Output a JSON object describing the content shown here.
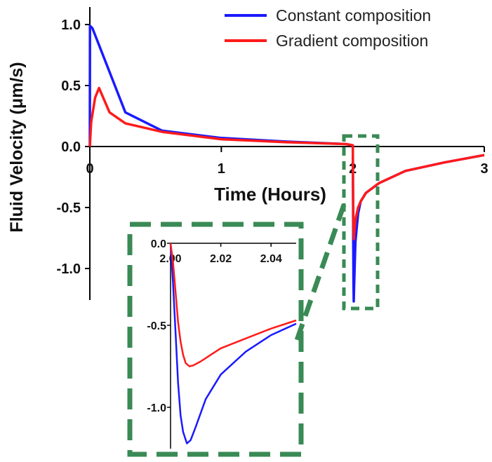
{
  "chart_data": {
    "type": "line",
    "xlabel": "Time (Hours)",
    "ylabel": "Fluid Velocity (μm/s)",
    "xlim": [
      0,
      3
    ],
    "ylim": [
      -1.25,
      1.15
    ],
    "x_ticks": [
      "0",
      "1",
      "2",
      "3"
    ],
    "y_ticks": [
      "1.0",
      "0.5",
      "0.0",
      "-0.5",
      "-1.0"
    ],
    "legend_position": "top-right",
    "grid": false,
    "series": [
      {
        "name": "Constant composition",
        "color": "#1a1aff",
        "x": [
          0,
          0.001,
          0.02,
          0.27,
          0.55,
          1.0,
          1.5,
          1.95,
          2.0,
          2.001,
          2.005,
          2.007,
          2.01,
          2.02,
          2.04,
          2.06,
          2.1,
          2.2,
          2.4,
          2.7,
          3.0
        ],
        "y": [
          0.0,
          0.99,
          0.97,
          0.28,
          0.13,
          0.07,
          0.04,
          0.02,
          0.01,
          -0.3,
          -1.1,
          -1.27,
          -1.15,
          -0.78,
          -0.55,
          -0.45,
          -0.38,
          -0.3,
          -0.2,
          -0.13,
          -0.07
        ]
      },
      {
        "name": "Gradient composition",
        "color": "#ff1a1a",
        "x": [
          0,
          0.01,
          0.04,
          0.07,
          0.15,
          0.27,
          0.55,
          1.0,
          1.5,
          1.95,
          2.0,
          2.002,
          2.005,
          2.008,
          2.01,
          2.02,
          2.04,
          2.06,
          2.1,
          2.2,
          2.4,
          2.7,
          3.0
        ],
        "y": [
          0.0,
          0.2,
          0.4,
          0.48,
          0.28,
          0.19,
          0.12,
          0.06,
          0.035,
          0.02,
          0.01,
          -0.35,
          -0.68,
          -0.76,
          -0.72,
          -0.6,
          -0.5,
          -0.45,
          -0.38,
          -0.3,
          -0.2,
          -0.13,
          -0.07
        ]
      }
    ],
    "inset": {
      "xlim": [
        2.0,
        2.05
      ],
      "ylim": [
        -1.23,
        0.0
      ],
      "x_ticks": [
        "2.00",
        "2.02",
        "2.04"
      ],
      "y_ticks": [
        "0.0",
        "-0.5",
        "-1.0"
      ],
      "series": [
        {
          "name": "Constant composition",
          "color": "#1a1aff",
          "x": [
            2.0,
            2.001,
            2.002,
            2.003,
            2.004,
            2.005,
            2.0065,
            2.008,
            2.01,
            2.014,
            2.02,
            2.03,
            2.04,
            2.05
          ],
          "y": [
            0.0,
            -0.25,
            -0.55,
            -0.85,
            -1.05,
            -1.15,
            -1.22,
            -1.2,
            -1.12,
            -0.95,
            -0.8,
            -0.66,
            -0.56,
            -0.49
          ]
        },
        {
          "name": "Gradient composition",
          "color": "#ff1a1a",
          "x": [
            2.0,
            2.001,
            2.002,
            2.003,
            2.004,
            2.005,
            2.006,
            2.0075,
            2.009,
            2.012,
            2.016,
            2.02,
            2.03,
            2.04,
            2.05
          ],
          "y": [
            0.0,
            -0.12,
            -0.3,
            -0.48,
            -0.6,
            -0.68,
            -0.73,
            -0.75,
            -0.745,
            -0.72,
            -0.68,
            -0.64,
            -0.58,
            -0.52,
            -0.47
          ]
        }
      ]
    }
  },
  "highlight_color": "#3a8a55"
}
